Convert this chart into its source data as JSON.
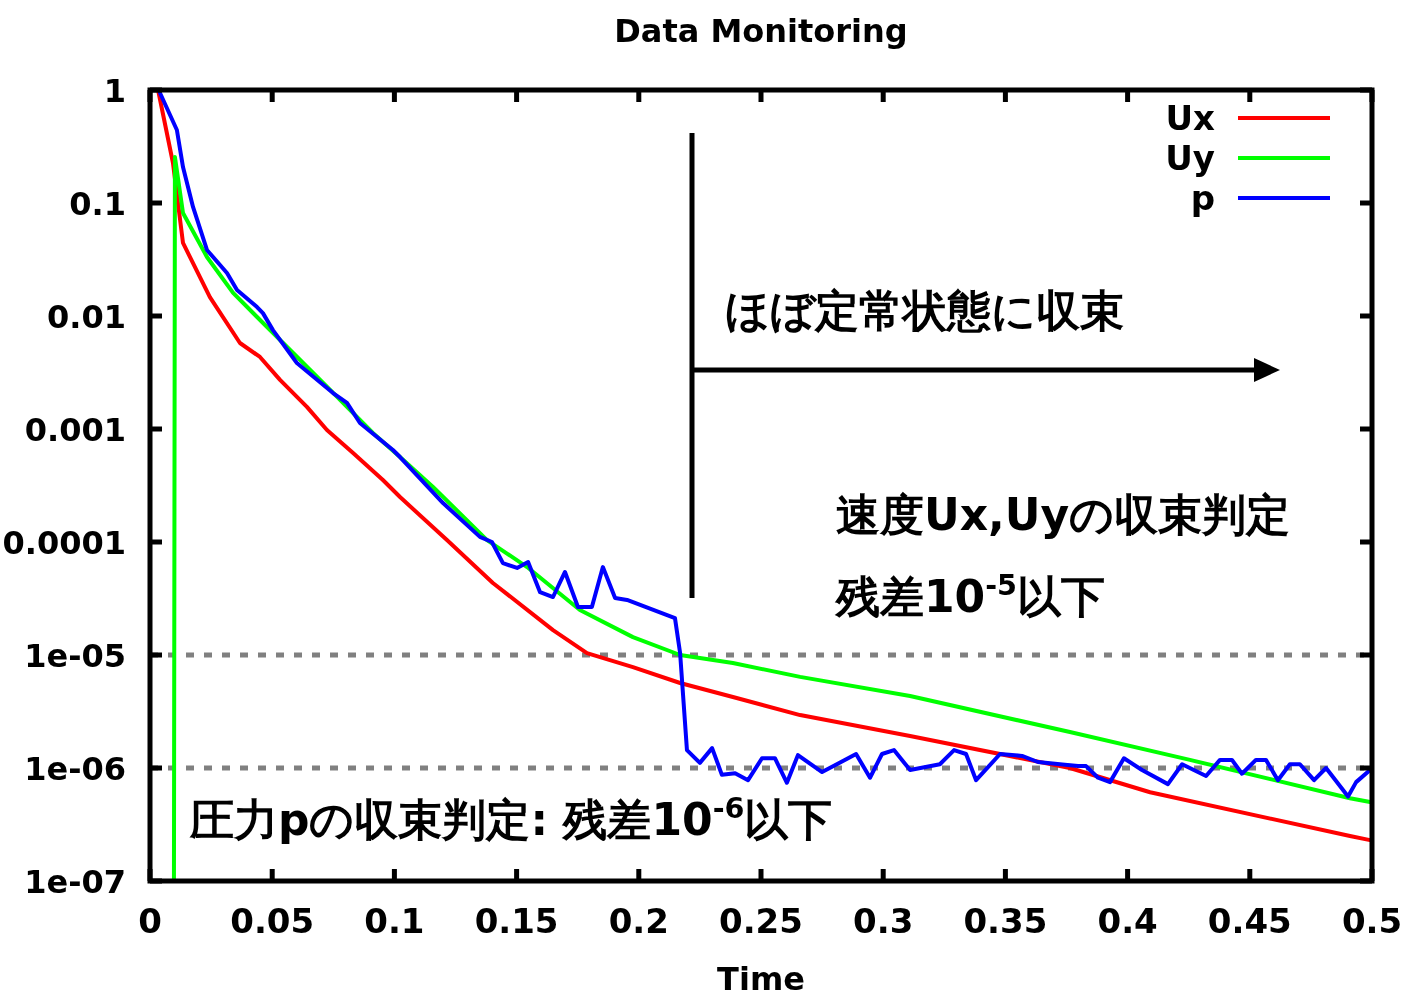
{
  "chart_data": {
    "type": "line",
    "title": "Data Monitoring",
    "xlabel": "Time",
    "xlim": [
      0,
      0.5
    ],
    "xticks": [
      0,
      0.05,
      0.1,
      0.15,
      0.2,
      0.25,
      0.3,
      0.35,
      0.4,
      0.45,
      0.5
    ],
    "ylim": [
      1e-07,
      1
    ],
    "log": "y",
    "yticks": [
      1,
      0.1,
      0.01,
      0.001,
      0.0001,
      {
        "value": 1e-05,
        "label": "1e-05"
      },
      {
        "value": 1e-06,
        "label": "1e-06"
      },
      {
        "value": 1e-07,
        "label": "1e-07"
      }
    ],
    "grid": false,
    "legend": "top right",
    "marker": "none",
    "line_style": "solid",
    "ref_lines": [
      {
        "axis": "y",
        "value": 1e-05,
        "color": "#808080",
        "line_style": "dotted"
      },
      {
        "axis": "y",
        "value": 1e-06,
        "color": "#808080",
        "line_style": "dotted"
      }
    ],
    "annotations": [
      "ほぼ定常状態に収束",
      "速度Ux,Uyの収束判定",
      "残差10$^{-5}$以下",
      "圧力pの収束判定: 残差10$^{-6}$以下"
    ],
    "series": [
      {
        "name": "Ux",
        "color": "#ff0000",
        "x": [
          0.0033,
          0.0094,
          0.0135,
          0.0245,
          0.0368,
          0.045,
          0.0532,
          0.0642,
          0.0724,
          0.0831,
          0.0953,
          0.1023,
          0.1215,
          0.1403,
          0.1649,
          0.1788,
          0.1976,
          0.2169,
          0.2385,
          0.266,
          0.311,
          0.3764,
          0.4092,
          0.491,
          0.4992
        ],
        "values": [
          1,
          0.226,
          0.0443,
          0.0147,
          0.00577,
          0.00434,
          0.00272,
          0.00157,
          0.00098,
          0.000614,
          0.000354,
          0.00025,
          0.000104,
          4.34e-05,
          1.66e-05,
          1.04e-05,
          7.8e-06,
          5.65e-06,
          4.25e-06,
          2.94e-06,
          1.92e-06,
          1e-06,
          6.1e-07,
          2.5e-07,
          2.3e-07
        ]
      },
      {
        "name": "Uy",
        "color": "#00ff00",
        "x": [
          0.0098,
          0.0102,
          0.0135,
          0.0233,
          0.034,
          0.0438,
          0.0561,
          0.0725,
          0.0912,
          0.1023,
          0.1158,
          0.1379,
          0.1543,
          0.1759,
          0.1976,
          0.2169,
          0.2385,
          0.266,
          0.311,
          0.3764,
          0.4255,
          0.491,
          0.4992
        ],
        "values": [
          1e-07,
          0.255,
          0.0816,
          0.0333,
          0.016,
          0.0098,
          0.00532,
          0.00236,
          0.000922,
          0.000565,
          0.000307,
          0.000104,
          6e-05,
          2.5e-05,
          1.44e-05,
          1e-05,
          8.5e-06,
          6.4e-06,
          4.34e-06,
          2.08e-06,
          1.18e-06,
          5.4e-07,
          5e-07
        ]
      },
      {
        "name": "p",
        "color": "#0000ff",
        "x": [
          0.0041,
          0.011,
          0.0135,
          0.0176,
          0.0233,
          0.0315,
          0.0356,
          0.0438,
          0.0462,
          0.0503,
          0.0601,
          0.0749,
          0.0806,
          0.0859,
          0.0994,
          0.1023,
          0.1199,
          0.135,
          0.1399,
          0.1444,
          0.1502,
          0.1547,
          0.1596,
          0.1649,
          0.1698,
          0.1751,
          0.1808,
          0.1853,
          0.1903,
          0.1952,
          0.2148,
          0.2169,
          0.2197,
          0.225,
          0.23,
          0.234,
          0.2394,
          0.2447,
          0.2504,
          0.2557,
          0.2606,
          0.2651,
          0.275,
          0.2889,
          0.2946,
          0.2995,
          0.3044,
          0.311,
          0.3232,
          0.329,
          0.3339,
          0.338,
          0.3478,
          0.3568,
          0.3633,
          0.3797,
          0.383,
          0.3879,
          0.3928,
          0.3985,
          0.4059,
          0.4165,
          0.4223,
          0.4321,
          0.4378,
          0.4427,
          0.4468,
          0.4525,
          0.4566,
          0.4615,
          0.4664,
          0.4705,
          0.4763,
          0.4812,
          0.4902,
          0.4935,
          0.4992
        ],
        "values": [
          0.94,
          0.443,
          0.208,
          0.0922,
          0.0384,
          0.024,
          0.017,
          0.012,
          0.0106,
          0.0075,
          0.00384,
          0.00208,
          0.0017,
          0.00113,
          0.000652,
          0.000565,
          0.000221,
          0.000111,
          0.0001,
          6.5e-05,
          5.9e-05,
          6.65e-05,
          3.6e-05,
          3.26e-05,
          5.43e-05,
          2.66e-05,
          2.66e-05,
          6e-05,
          3.19e-05,
          3.07e-05,
          2.12e-05,
          1.04e-05,
          1.44e-06,
          1.11e-06,
          1.5e-06,
          8.7e-07,
          9e-07,
          7.8e-07,
          1.22e-06,
          1.22e-06,
          7.4e-07,
          1.3e-06,
          9.2e-07,
          1.33e-06,
          8.2e-07,
          1.33e-06,
          1.44e-06,
          9.6e-07,
          1.08e-06,
          1.44e-06,
          1.33e-06,
          7.8e-07,
          1.33e-06,
          1.28e-06,
          1.13e-06,
          1.04e-06,
          1.04e-06,
          8.2e-07,
          7.5e-07,
          1.22e-06,
          9.6e-07,
          7.2e-07,
          1.08e-06,
          8.5e-07,
          1.18e-06,
          1.18e-06,
          8.9e-07,
          1.18e-06,
          1.18e-06,
          7.8e-07,
          1.08e-06,
          1.08e-06,
          7.8e-07,
          1e-06,
          5.6e-07,
          7.5e-07,
          9.6e-07
        ]
      }
    ]
  }
}
